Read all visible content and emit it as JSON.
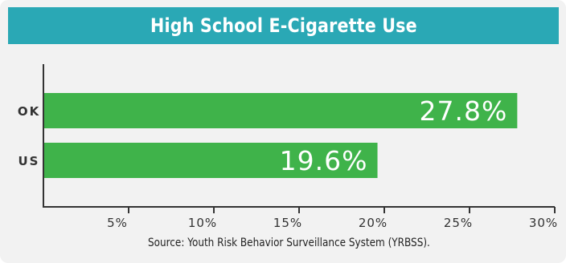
{
  "header": {
    "title": "High School E-Cigarette Use"
  },
  "source": "Source: Youth Risk Behavior Surveillance System (YRBSS).",
  "colors": {
    "header_bg": "#2aa8b5",
    "bar": "#3fb34a",
    "background": "#f2f2f2"
  },
  "chart_data": {
    "type": "bar",
    "orientation": "horizontal",
    "title": "High School E-Cigarette Use",
    "categories": [
      "OK",
      "US"
    ],
    "values": [
      27.8,
      19.6
    ],
    "value_labels": [
      "27.8%",
      "19.6%"
    ],
    "xlim": [
      0,
      30
    ],
    "xticks": [
      5,
      10,
      15,
      20,
      25,
      30
    ],
    "xtick_labels": [
      "5%",
      "10%",
      "15%",
      "20%",
      "25%",
      "30%"
    ],
    "grid": false,
    "legend": "none"
  }
}
